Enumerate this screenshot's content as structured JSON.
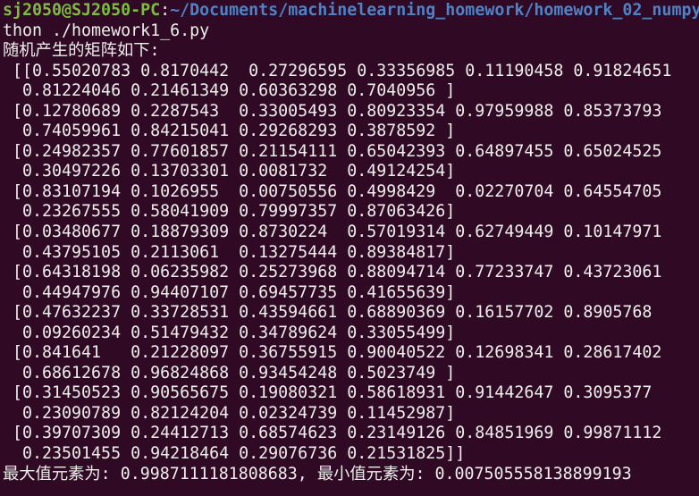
{
  "terminal": {
    "prompt": {
      "user_host": "sj2050@SJ2050-PC",
      "separator": ":",
      "path": "~/Documents/machinelearning_homework/homework_02_numpy"
    },
    "command_continuation": "thon ./homework1_6.py",
    "output_lines": [
      "随机产生的矩阵如下:",
      " [[0.55020783 0.8170442  0.27296595 0.33356985 0.11190458 0.91824651",
      "  0.81224046 0.21461349 0.60363298 0.7040956 ]",
      " [0.12780689 0.2287543  0.33005493 0.80923354 0.97959988 0.85373793",
      "  0.74059961 0.84215041 0.29268293 0.3878592 ]",
      " [0.24982357 0.77601857 0.21154111 0.65042393 0.64897455 0.65024525",
      "  0.30497226 0.13703301 0.0081732  0.49124254]",
      " [0.83107194 0.1026955  0.00750556 0.4998429  0.02270704 0.64554705",
      "  0.23267555 0.58041909 0.79997357 0.87063426]",
      " [0.03480677 0.18879309 0.8730224  0.57019314 0.62749449 0.10147971",
      "  0.43795105 0.2113061  0.13275444 0.89384817]",
      " [0.64318198 0.06235982 0.25273968 0.88094714 0.77233747 0.43723061",
      "  0.44947976 0.94407107 0.69457735 0.41655639]",
      " [0.47632237 0.33728531 0.43594661 0.68890369 0.16157702 0.8905768",
      "  0.09260234 0.51479432 0.34789624 0.33055499]",
      " [0.841641   0.21228097 0.36755915 0.90040522 0.12698341 0.28617402",
      "  0.68612678 0.96824868 0.93454248 0.5023749 ]",
      " [0.31450523 0.90565675 0.19080321 0.58618931 0.91442647 0.3095377",
      "  0.23090789 0.82124204 0.02324739 0.11452987]",
      " [0.39707309 0.24412713 0.68574623 0.23149126 0.84851969 0.99871112",
      "  0.23501455 0.94218464 0.29076736 0.21531825]]",
      "最大值元素为: 0.9987111181808683, 最小值元素为: 0.007505558138899193"
    ],
    "colors": {
      "background": "#300a24",
      "text": "#eeeeec",
      "user_host": "#7cbd3e",
      "path": "#4f82c6"
    }
  }
}
